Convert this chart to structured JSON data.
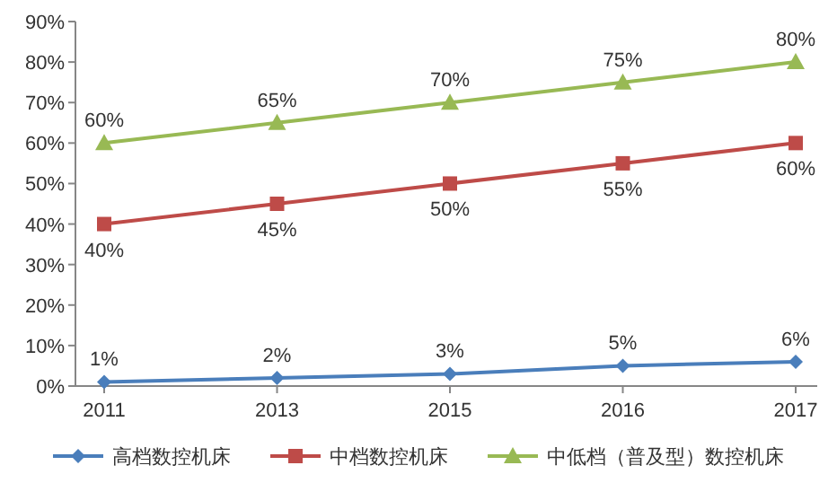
{
  "chart_data": {
    "type": "line",
    "categories": [
      "2011",
      "2013",
      "2015",
      "2016",
      "2017"
    ],
    "series": [
      {
        "name": "高档数控机床",
        "color": "#4a7ebb",
        "marker": "diamond",
        "values": [
          1,
          2,
          3,
          5,
          6
        ],
        "value_labels": [
          "1%",
          "2%",
          "3%",
          "5%",
          "6%"
        ]
      },
      {
        "name": "中档数控机床",
        "color": "#be4b48",
        "marker": "square",
        "values": [
          40,
          45,
          50,
          55,
          60
        ],
        "value_labels": [
          "40%",
          "45%",
          "50%",
          "55%",
          "60%"
        ]
      },
      {
        "name": "中低档（普及型）数控机床",
        "color": "#98b954",
        "marker": "triangle",
        "values": [
          60,
          65,
          70,
          75,
          80
        ],
        "value_labels": [
          "60%",
          "65%",
          "70%",
          "75%",
          "80%"
        ]
      }
    ],
    "ylim": [
      0,
      90
    ],
    "yticks": [
      {
        "value": 0,
        "label": "0%"
      },
      {
        "value": 10,
        "label": "10%"
      },
      {
        "value": 20,
        "label": "20%"
      },
      {
        "value": 30,
        "label": "30%"
      },
      {
        "value": 40,
        "label": "40%"
      },
      {
        "value": 50,
        "label": "50%"
      },
      {
        "value": 60,
        "label": "60%"
      },
      {
        "value": 70,
        "label": "70%"
      },
      {
        "value": 80,
        "label": "80%"
      },
      {
        "value": 90,
        "label": "90%"
      }
    ],
    "grid": false,
    "legend": "bottom"
  }
}
